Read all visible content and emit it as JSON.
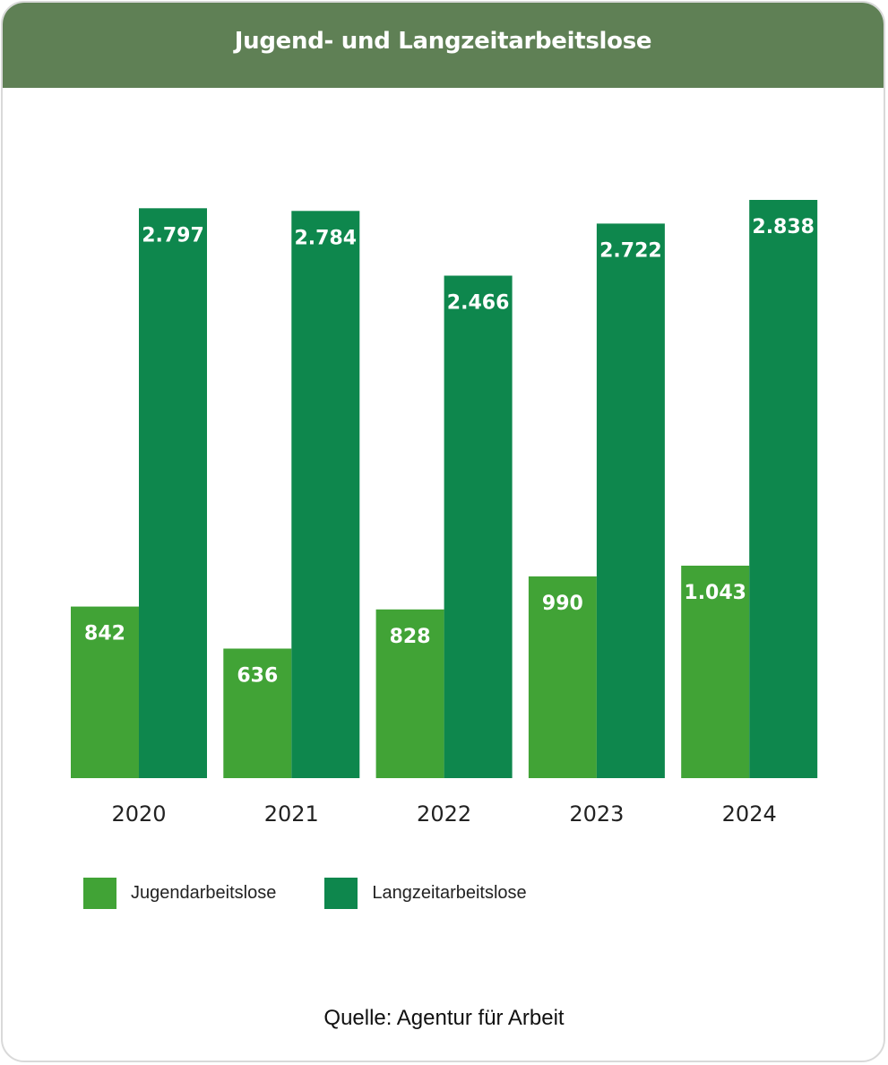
{
  "header": {
    "title": "Jugend- und Langzeitarbeitslose"
  },
  "chart_data": {
    "type": "bar",
    "title": "Jugend- und Langzeitarbeitslose",
    "categories": [
      "2020",
      "2021",
      "2022",
      "2023",
      "2024"
    ],
    "series": [
      {
        "name": "Jugendarbeitslose",
        "values": [
          842,
          636,
          828,
          990,
          1043
        ],
        "labels": [
          "842",
          "636",
          "828",
          "990",
          "1.043"
        ],
        "color": "#41a336"
      },
      {
        "name": "Langzeitarbeitslose",
        "values": [
          2797,
          2784,
          2466,
          2722,
          2838
        ],
        "labels": [
          "2.797",
          "2.784",
          "2.466",
          "2.722",
          "2.838"
        ],
        "color": "#0e874d"
      }
    ],
    "xlabel": "",
    "ylabel": "",
    "ylim": [
      0,
      2838
    ],
    "grid": false,
    "legend_position": "bottom-left"
  },
  "legend": {
    "items": [
      {
        "label": "Jugendarbeitslose",
        "color": "#41a336"
      },
      {
        "label": "Langzeitarbeitslose",
        "color": "#0e874d"
      }
    ]
  },
  "source": {
    "text": "Quelle: Agentur für Arbeit"
  }
}
